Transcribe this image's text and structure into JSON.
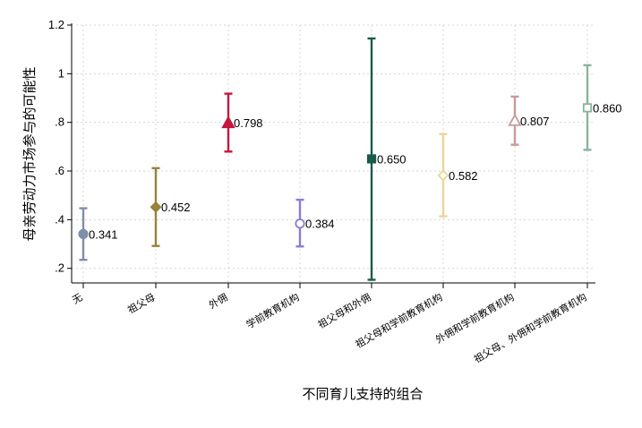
{
  "chart_data": {
    "type": "scatter",
    "title": "",
    "xlabel": "不同育儿支持的组合",
    "ylabel": "母亲劳动力市场参与的可能性",
    "ylim": [
      0.14,
      1.2
    ],
    "y_ticks": [
      0.2,
      0.4,
      0.6,
      0.8,
      1.0,
      1.2
    ],
    "y_tick_labels": [
      ".2",
      ".4",
      ".6",
      ".8",
      "1",
      "1.2"
    ],
    "grid": true,
    "categories": [
      "无",
      "祖父母",
      "外佣",
      "学前教育机构",
      "祖父母和外佣",
      "祖父母和学前教育机构",
      "外佣和学前教育机构",
      "祖父母、外佣和学前教育机构"
    ],
    "points": [
      {
        "category": "无",
        "value": 0.341,
        "label": "0.341",
        "ci_low": 0.235,
        "ci_high": 0.447,
        "marker": "circle",
        "color": "#7d90aa"
      },
      {
        "category": "祖父母",
        "value": 0.452,
        "label": "0.452",
        "ci_low": 0.292,
        "ci_high": 0.612,
        "marker": "diamond",
        "color": "#97823a"
      },
      {
        "category": "外佣",
        "value": 0.798,
        "label": "0.798",
        "ci_low": 0.68,
        "ci_high": 0.918,
        "marker": "triangle",
        "color": "#c7163c"
      },
      {
        "category": "学前教育机构",
        "value": 0.384,
        "label": "0.384",
        "ci_low": 0.29,
        "ci_high": 0.482,
        "marker": "circle-open",
        "color": "#8e7bd6"
      },
      {
        "category": "祖父母和外佣",
        "value": 0.65,
        "label": "0.650",
        "ci_low": 0.153,
        "ci_high": 1.145,
        "marker": "square",
        "color": "#1b5b4b"
      },
      {
        "category": "祖父母和学前教育机构",
        "value": 0.582,
        "label": "0.582",
        "ci_low": 0.414,
        "ci_high": 0.752,
        "marker": "diamond-open",
        "color": "#e6d79c"
      },
      {
        "category": "外佣和学前教育机构",
        "value": 0.807,
        "label": "0.807",
        "ci_low": 0.708,
        "ci_high": 0.906,
        "marker": "triangle-open",
        "color": "#c89a98"
      },
      {
        "category": "祖父母、外佣和学前教育机构",
        "value": 0.86,
        "label": "0.860",
        "ci_low": 0.687,
        "ci_high": 1.035,
        "marker": "square-open",
        "color": "#8ab39e"
      }
    ]
  }
}
